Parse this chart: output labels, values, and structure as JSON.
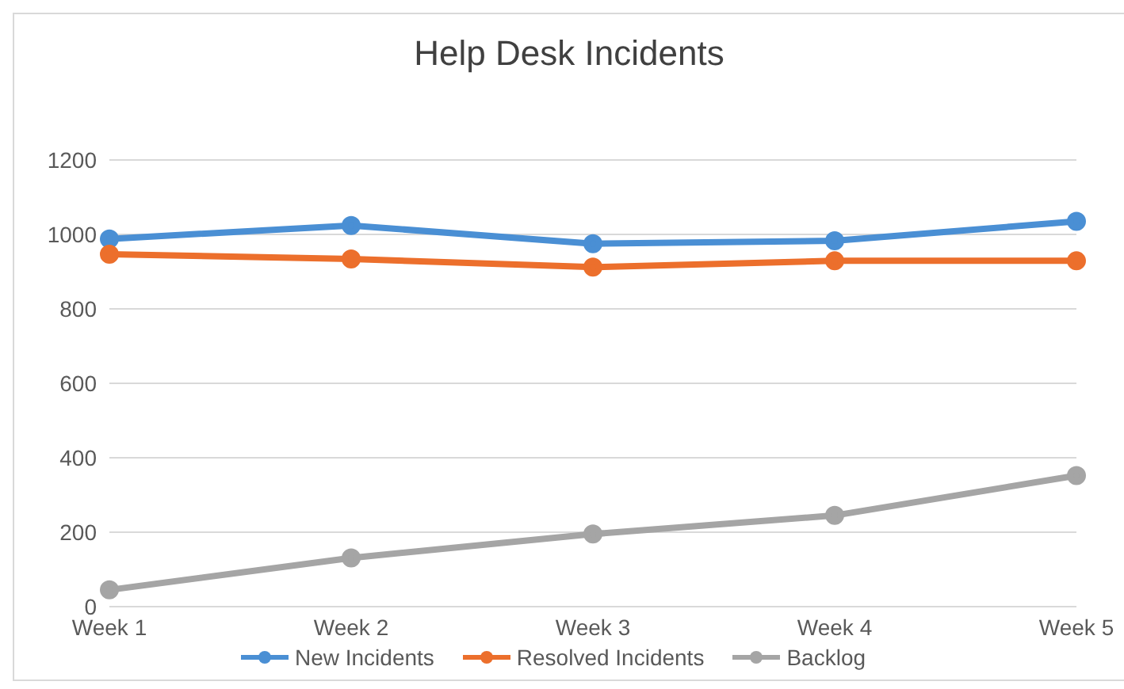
{
  "chart_data": {
    "type": "line",
    "title": "Help Desk Incidents",
    "categories": [
      "Week 1",
      "Week 2",
      "Week 3",
      "Week 4",
      "Week 5"
    ],
    "series": [
      {
        "name": "New Incidents",
        "color": "#4a8fd4",
        "values": [
          988,
          1024,
          975,
          983,
          1035
        ]
      },
      {
        "name": "Resolved Incidents",
        "color": "#ec6f2c",
        "values": [
          947,
          934,
          912,
          929,
          929
        ]
      },
      {
        "name": "Backlog",
        "color": "#a5a5a5",
        "values": [
          45,
          131,
          195,
          245,
          352
        ]
      }
    ],
    "ylim": [
      0,
      1200
    ],
    "yticks": [
      0,
      200,
      400,
      600,
      800,
      1000,
      1200
    ],
    "grid": "y",
    "legend": "bottom",
    "marker": "circle",
    "line_style": "solid"
  }
}
